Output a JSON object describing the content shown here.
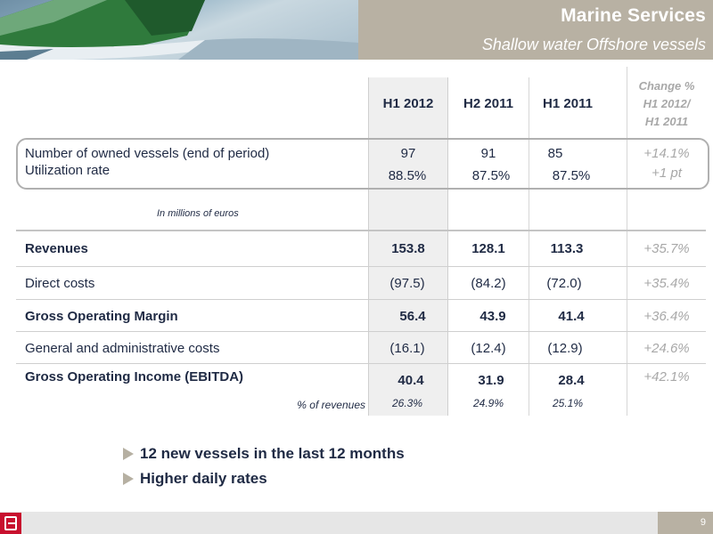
{
  "header": {
    "title": "Marine Services",
    "subtitle": "Shallow water Offshore vessels"
  },
  "table": {
    "columns": [
      "H1 2012",
      "H2 2011",
      "H1 2011"
    ],
    "change_header": [
      "Change %",
      "H1 2012/",
      "H1 2011"
    ],
    "fleet": {
      "vessels_label": "Number of owned vessels (end of period)",
      "vessels_values": [
        "97",
        "91",
        "85"
      ],
      "vessels_change": "+14.1%",
      "utilization_label": "Utilization rate",
      "utilization_values": [
        "88.5%",
        "87.5%",
        "87.5%"
      ],
      "utilization_change": "+1 pt"
    },
    "unit_note": "In millions of euros",
    "rows": [
      {
        "label": "Revenues",
        "values": [
          "153.8",
          "128.1",
          "113.3"
        ],
        "change": "+35.7%"
      },
      {
        "label": "Direct costs",
        "values": [
          "(97.5)",
          "(84.2)",
          "(72.0)"
        ],
        "change": "+35.4%"
      },
      {
        "label": "Gross Operating Margin",
        "values": [
          "56.4",
          "43.9",
          "41.4"
        ],
        "change": "+36.4%"
      },
      {
        "label": "General and administrative costs",
        "values": [
          "(16.1)",
          "(12.4)",
          "(12.9)"
        ],
        "change": "+24.6%"
      },
      {
        "label": "Gross Operating Income (EBITDA)",
        "values": [
          "40.4",
          "31.9",
          "28.4"
        ],
        "change": "+42.1%"
      }
    ],
    "pct_label": "% of revenues",
    "pct_values": [
      "26.3%",
      "24.9%",
      "25.1%"
    ]
  },
  "bullets": [
    "12 new vessels in the last 12 months",
    "Higher daily rates"
  ],
  "footer": {
    "page_number": "9",
    "logo_icon": "bourbon-logo-icon"
  },
  "colors": {
    "header_band": "#b8b1a3",
    "text_navy": "#1f2a44",
    "change_gray": "#a8a8a8",
    "logo_red": "#c8102e"
  }
}
